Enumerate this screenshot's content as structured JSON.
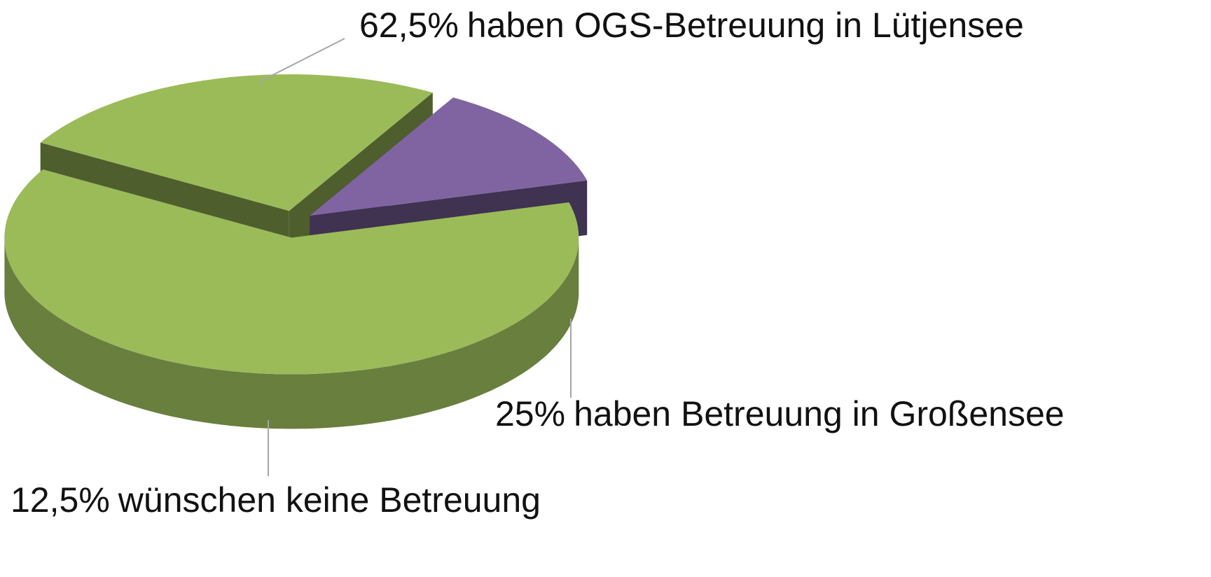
{
  "chart_data": {
    "type": "pie3d",
    "categories": [
      "haben OGS-Betreuung in Lütjensee",
      "haben Betreuung in Großensee",
      "wünschen keine Betreuung"
    ],
    "values": [
      62.5,
      25,
      12.5
    ],
    "value_labels": [
      "62,5%",
      "25%",
      "12,5%"
    ],
    "colors": [
      "#9bbb59",
      "#9bbb59",
      "#8064a2"
    ]
  }
}
